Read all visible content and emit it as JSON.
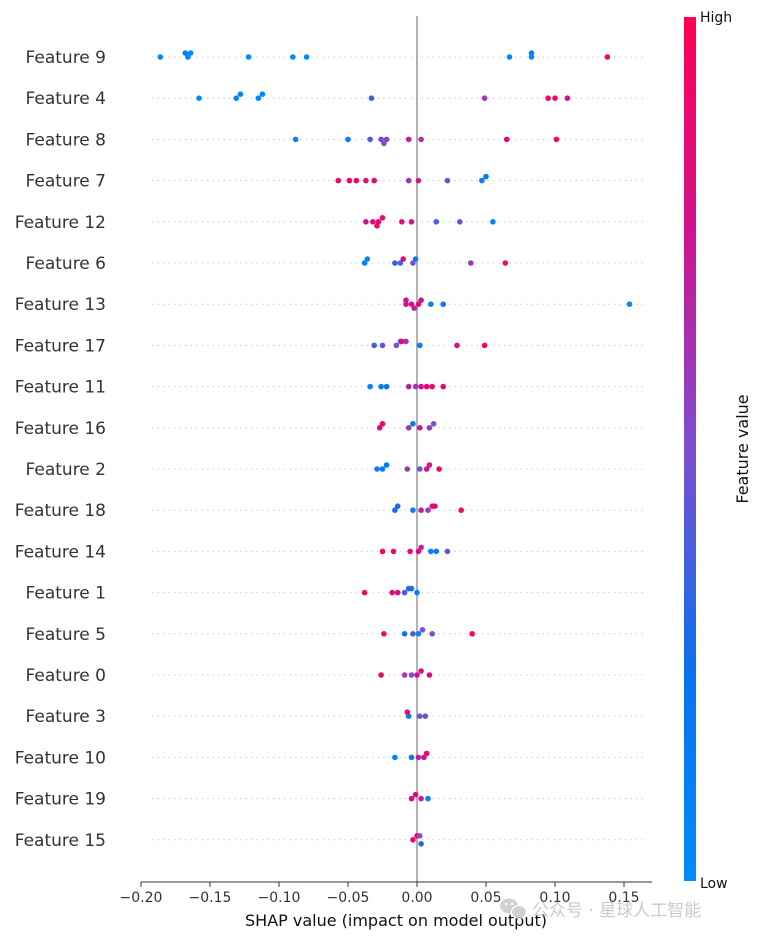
{
  "chart_data": {
    "type": "scatter",
    "subtype": "shap-beeswarm",
    "title": "",
    "xlabel": "SHAP value (impact on model output)",
    "ylabel": "",
    "xlim": [
      -0.2,
      0.17
    ],
    "xticks": [
      -0.2,
      -0.15,
      -0.1,
      -0.05,
      0.0,
      0.05,
      0.1,
      0.15
    ],
    "xtick_labels": [
      "−0.20",
      "−0.15",
      "−0.10",
      "−0.05",
      "0.00",
      "0.05",
      "0.10",
      "0.15"
    ],
    "grid": false,
    "colorbar": {
      "title": "Feature value",
      "high_label": "High",
      "low_label": "Low",
      "colors": [
        "#008bfb",
        "#ff0052"
      ]
    },
    "features": [
      {
        "name": "Feature 9",
        "points": [
          [
            -0.186,
            0.0
          ],
          [
            -0.166,
            0.02
          ],
          [
            -0.164,
            0.0
          ],
          [
            -0.168,
            0.1
          ],
          [
            -0.122,
            0.0
          ],
          [
            -0.09,
            0.0
          ],
          [
            -0.08,
            0.0
          ],
          [
            0.067,
            0.0
          ],
          [
            0.083,
            0.0
          ],
          [
            0.083,
            0.1
          ],
          [
            0.138,
            0.95
          ]
        ]
      },
      {
        "name": "Feature 4",
        "points": [
          [
            -0.158,
            0.0
          ],
          [
            -0.131,
            0.05
          ],
          [
            -0.128,
            0.05
          ],
          [
            -0.115,
            0.03
          ],
          [
            -0.112,
            0.0
          ],
          [
            -0.033,
            0.35
          ],
          [
            0.049,
            0.6
          ],
          [
            0.095,
            0.9
          ],
          [
            0.1,
            0.9
          ],
          [
            0.109,
            0.8
          ]
        ]
      },
      {
        "name": "Feature 8",
        "points": [
          [
            -0.088,
            0.05
          ],
          [
            -0.05,
            0.1
          ],
          [
            -0.034,
            0.4
          ],
          [
            -0.026,
            0.45
          ],
          [
            -0.022,
            0.55
          ],
          [
            -0.024,
            0.5
          ],
          [
            -0.006,
            0.7
          ],
          [
            0.003,
            0.65
          ],
          [
            0.065,
            0.85
          ],
          [
            0.101,
            0.95
          ]
        ]
      },
      {
        "name": "Feature 7",
        "points": [
          [
            -0.057,
            0.95
          ],
          [
            -0.049,
            0.9
          ],
          [
            -0.044,
            0.9
          ],
          [
            -0.037,
            0.8
          ],
          [
            -0.031,
            0.85
          ],
          [
            -0.006,
            0.6
          ],
          [
            0.001,
            0.7
          ],
          [
            0.022,
            0.45
          ],
          [
            0.047,
            0.1
          ],
          [
            0.05,
            0.2
          ]
        ]
      },
      {
        "name": "Feature 12",
        "points": [
          [
            -0.037,
            0.75
          ],
          [
            -0.032,
            0.85
          ],
          [
            -0.028,
            0.9
          ],
          [
            -0.025,
            0.85
          ],
          [
            -0.029,
            0.9
          ],
          [
            -0.011,
            0.85
          ],
          [
            -0.004,
            0.75
          ],
          [
            0.014,
            0.4
          ],
          [
            0.031,
            0.5
          ],
          [
            0.055,
            0.1
          ]
        ]
      },
      {
        "name": "Feature 6",
        "points": [
          [
            -0.038,
            0.1
          ],
          [
            -0.036,
            0.05
          ],
          [
            -0.016,
            0.3
          ],
          [
            -0.012,
            0.4
          ],
          [
            -0.01,
            0.8
          ],
          [
            -0.003,
            0.5
          ],
          [
            -0.001,
            0.15
          ],
          [
            0.039,
            0.6
          ],
          [
            0.064,
            0.9
          ]
        ]
      },
      {
        "name": "Feature 13",
        "points": [
          [
            -0.008,
            0.8
          ],
          [
            -0.004,
            0.85
          ],
          [
            0.001,
            0.8
          ],
          [
            -0.008,
            0.75
          ],
          [
            -0.002,
            0.7
          ],
          [
            0.003,
            0.75
          ],
          [
            0.01,
            0.1
          ],
          [
            0.019,
            0.15
          ],
          [
            0.154,
            0.0
          ]
        ]
      },
      {
        "name": "Feature 17",
        "points": [
          [
            -0.031,
            0.35
          ],
          [
            -0.025,
            0.45
          ],
          [
            -0.015,
            0.5
          ],
          [
            -0.012,
            0.4
          ],
          [
            -0.011,
            0.9
          ],
          [
            -0.008,
            0.6
          ],
          [
            0.002,
            0.1
          ],
          [
            0.029,
            0.75
          ],
          [
            0.049,
            0.95
          ]
        ]
      },
      {
        "name": "Feature 11",
        "points": [
          [
            -0.034,
            0.1
          ],
          [
            -0.026,
            0.15
          ],
          [
            -0.022,
            0.2
          ],
          [
            -0.006,
            0.7
          ],
          [
            0.003,
            0.75
          ],
          [
            0.007,
            0.9
          ],
          [
            0.011,
            0.85
          ],
          [
            0.019,
            0.9
          ],
          [
            -0.001,
            0.6
          ]
        ]
      },
      {
        "name": "Feature 16",
        "points": [
          [
            -0.027,
            0.85
          ],
          [
            -0.025,
            0.9
          ],
          [
            -0.006,
            0.6
          ],
          [
            -0.003,
            0.2
          ],
          [
            0.002,
            0.75
          ],
          [
            0.009,
            0.6
          ],
          [
            0.012,
            0.5
          ]
        ]
      },
      {
        "name": "Feature 2",
        "points": [
          [
            -0.029,
            0.1
          ],
          [
            -0.025,
            0.15
          ],
          [
            -0.022,
            0.2
          ],
          [
            -0.007,
            0.6
          ],
          [
            0.002,
            0.45
          ],
          [
            0.007,
            0.8
          ],
          [
            0.009,
            0.75
          ],
          [
            0.016,
            0.9
          ]
        ]
      },
      {
        "name": "Feature 18",
        "points": [
          [
            -0.016,
            0.2
          ],
          [
            -0.014,
            0.3
          ],
          [
            -0.003,
            0.15
          ],
          [
            0.003,
            0.7
          ],
          [
            0.008,
            0.6
          ],
          [
            0.011,
            0.8
          ],
          [
            0.013,
            0.9
          ],
          [
            0.032,
            0.9
          ]
        ]
      },
      {
        "name": "Feature 14",
        "points": [
          [
            -0.025,
            0.95
          ],
          [
            -0.017,
            0.9
          ],
          [
            -0.005,
            0.85
          ],
          [
            0.001,
            0.8
          ],
          [
            0.003,
            0.7
          ],
          [
            0.01,
            0.1
          ],
          [
            0.014,
            0.15
          ],
          [
            0.022,
            0.45
          ]
        ]
      },
      {
        "name": "Feature 1",
        "points": [
          [
            -0.038,
            0.9
          ],
          [
            -0.018,
            0.85
          ],
          [
            -0.014,
            0.8
          ],
          [
            -0.009,
            0.4
          ],
          [
            -0.006,
            0.35
          ],
          [
            -0.004,
            0.2
          ],
          [
            0.0,
            0.1
          ]
        ]
      },
      {
        "name": "Feature 5",
        "points": [
          [
            -0.024,
            0.9
          ],
          [
            -0.009,
            0.2
          ],
          [
            -0.003,
            0.4
          ],
          [
            0.001,
            0.1
          ],
          [
            0.004,
            0.5
          ],
          [
            0.011,
            0.45
          ],
          [
            0.04,
            0.95
          ]
        ]
      },
      {
        "name": "Feature 0",
        "points": [
          [
            -0.026,
            0.9
          ],
          [
            -0.009,
            0.6
          ],
          [
            -0.004,
            0.5
          ],
          [
            0.0,
            0.75
          ],
          [
            0.003,
            0.8
          ],
          [
            0.009,
            0.85
          ]
        ]
      },
      {
        "name": "Feature 3",
        "points": [
          [
            -0.006,
            0.1
          ],
          [
            -0.007,
            0.9
          ],
          [
            0.002,
            0.5
          ],
          [
            0.006,
            0.45
          ]
        ]
      },
      {
        "name": "Feature 10",
        "points": [
          [
            -0.016,
            0.1
          ],
          [
            -0.004,
            0.2
          ],
          [
            0.001,
            0.7
          ],
          [
            0.005,
            0.75
          ],
          [
            0.007,
            0.85
          ]
        ]
      },
      {
        "name": "Feature 19",
        "points": [
          [
            -0.004,
            0.9
          ],
          [
            -0.001,
            0.8
          ],
          [
            0.003,
            0.7
          ],
          [
            0.008,
            0.1
          ]
        ]
      },
      {
        "name": "Feature 15",
        "points": [
          [
            -0.003,
            0.9
          ],
          [
            0.0,
            0.85
          ],
          [
            0.002,
            0.5
          ],
          [
            0.003,
            0.3
          ]
        ]
      }
    ]
  },
  "watermark": {
    "text": "公众号 · 星球人工智能",
    "icon": "wechat-icon"
  }
}
